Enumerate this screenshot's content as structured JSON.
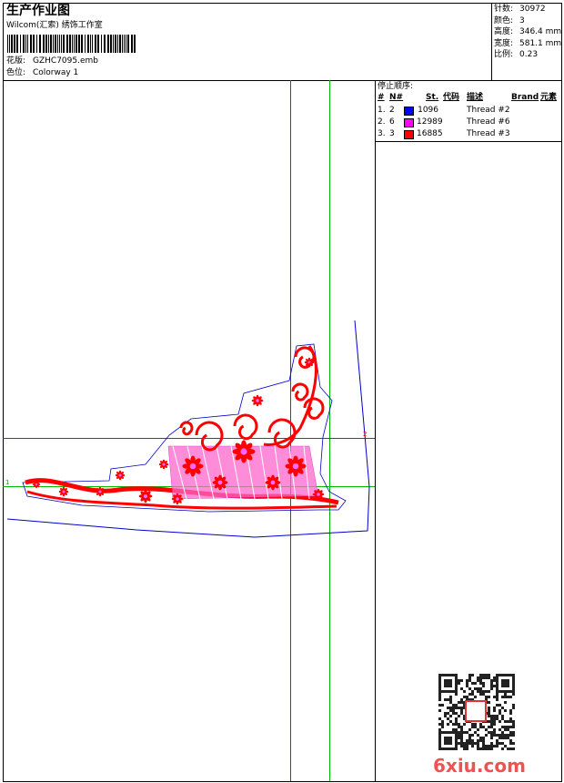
{
  "header": {
    "title": "生产作业图",
    "company": "Wilcom(汇索) 绣饰工作室",
    "design_label": "花版:",
    "design": "GZHC7095.emb",
    "colorway_label": "色位:",
    "colorway": "Colorway 1"
  },
  "stats": [
    {
      "label": "针数:",
      "value": "30972"
    },
    {
      "label": "颜色:",
      "value": "3"
    },
    {
      "label": "高度:",
      "value": "346.4 mm"
    },
    {
      "label": "宽度:",
      "value": "581.1 mm"
    },
    {
      "label": "比例:",
      "value": "0.23"
    }
  ],
  "sequence": {
    "title": "停止顺序:",
    "headers": [
      "#",
      "N#",
      "St.",
      "代码",
      "描述",
      "Brand",
      "元素"
    ],
    "rows": [
      {
        "index": "1.",
        "n": "2",
        "color": "#0000ff",
        "stitches": "1096",
        "description": "Thread #2"
      },
      {
        "index": "2.",
        "n": "6",
        "color": "#ff00ff",
        "stitches": "12989",
        "description": "Thread #6"
      },
      {
        "index": "3.",
        "n": "3",
        "color": "#ff0000",
        "stitches": "16885",
        "description": "Thread #3"
      }
    ]
  },
  "markers": {
    "left": "1",
    "right": "2"
  },
  "watermark": "6xiu.com"
}
